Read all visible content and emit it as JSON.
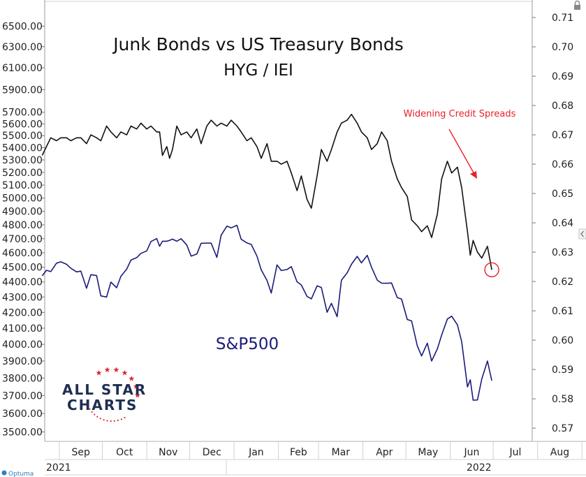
{
  "chart_data": {
    "type": "line",
    "title": "Junk Bonds vs US Treasury Bonds",
    "subtitle": "HYG / IEI",
    "annotation": "Widening Credit Spreads",
    "x_months": [
      "Sep",
      "Oct",
      "Nov",
      "Dec",
      "Jan",
      "Feb",
      "Mar",
      "Apr",
      "May",
      "Jun",
      "Jul",
      "Aug"
    ],
    "x_years": [
      "2021",
      "2022"
    ],
    "left_axis": {
      "ticks": [
        "6500.00",
        "6300.00",
        "6100.00",
        "5900.00",
        "5700.00",
        "5600.00",
        "5500.00",
        "5400.00",
        "5300.00",
        "5200.00",
        "5100.00",
        "5000.00",
        "4900.00",
        "4800.00",
        "4700.00",
        "4600.00",
        "4500.00",
        "4400.00",
        "4300.00",
        "4200.00",
        "4100.00",
        "4000.00",
        "3900.00",
        "3800.00",
        "3700.00",
        "3600.00",
        "3500.00"
      ],
      "scale": "log",
      "ylim": [
        3450,
        6750
      ]
    },
    "right_axis": {
      "ticks": [
        "0.71",
        "0.70",
        "0.69",
        "0.68",
        "0.67",
        "0.66",
        "0.65",
        "0.64",
        "0.63",
        "0.62",
        "0.61",
        "0.60",
        "0.59",
        "0.58",
        "0.57"
      ],
      "ylim": [
        0.5655,
        0.7155
      ]
    },
    "series": [
      {
        "name": "HYG / IEI",
        "axis": "right",
        "color": "#111111",
        "values": [
          [
            "2021-08-20",
            0.663
          ],
          [
            "2021-08-23",
            0.666
          ],
          [
            "2021-08-26",
            0.669
          ],
          [
            "2021-08-30",
            0.668
          ],
          [
            "2021-09-02",
            0.669
          ],
          [
            "2021-09-06",
            0.669
          ],
          [
            "2021-09-09",
            0.668
          ],
          [
            "2021-09-13",
            0.669
          ],
          [
            "2021-09-16",
            0.669
          ],
          [
            "2021-09-20",
            0.667
          ],
          [
            "2021-09-23",
            0.67
          ],
          [
            "2021-09-27",
            0.669
          ],
          [
            "2021-09-30",
            0.668
          ],
          [
            "2021-10-04",
            0.673
          ],
          [
            "2021-10-07",
            0.671
          ],
          [
            "2021-10-11",
            0.669
          ],
          [
            "2021-10-14",
            0.671
          ],
          [
            "2021-10-18",
            0.67
          ],
          [
            "2021-10-21",
            0.673
          ],
          [
            "2021-10-25",
            0.672
          ],
          [
            "2021-10-28",
            0.674
          ],
          [
            "2021-11-01",
            0.672
          ],
          [
            "2021-11-04",
            0.673
          ],
          [
            "2021-11-08",
            0.671
          ],
          [
            "2021-11-10",
            0.671
          ],
          [
            "2021-11-12",
            0.663
          ],
          [
            "2021-11-15",
            0.666
          ],
          [
            "2021-11-17",
            0.662
          ],
          [
            "2021-11-19",
            0.665
          ],
          [
            "2021-11-22",
            0.673
          ],
          [
            "2021-11-25",
            0.67
          ],
          [
            "2021-11-29",
            0.671
          ],
          [
            "2021-12-02",
            0.669
          ],
          [
            "2021-12-06",
            0.672
          ],
          [
            "2021-12-09",
            0.667
          ],
          [
            "2021-12-13",
            0.673
          ],
          [
            "2021-12-16",
            0.675
          ],
          [
            "2021-12-20",
            0.673
          ],
          [
            "2021-12-23",
            0.674
          ],
          [
            "2021-12-27",
            0.673
          ],
          [
            "2021-12-30",
            0.675
          ],
          [
            "2022-01-03",
            0.673
          ],
          [
            "2022-01-06",
            0.671
          ],
          [
            "2022-01-10",
            0.668
          ],
          [
            "2022-01-13",
            0.669
          ],
          [
            "2022-01-17",
            0.666
          ],
          [
            "2022-01-20",
            0.662
          ],
          [
            "2022-01-24",
            0.667
          ],
          [
            "2022-01-27",
            0.661
          ],
          [
            "2022-01-31",
            0.661
          ],
          [
            "2022-02-03",
            0.66
          ],
          [
            "2022-02-07",
            0.661
          ],
          [
            "2022-02-10",
            0.657
          ],
          [
            "2022-02-14",
            0.651
          ],
          [
            "2022-02-17",
            0.656
          ],
          [
            "2022-02-21",
            0.648
          ],
          [
            "2022-02-24",
            0.645
          ],
          [
            "2022-02-28",
            0.656
          ],
          [
            "2022-03-03",
            0.665
          ],
          [
            "2022-03-07",
            0.661
          ],
          [
            "2022-03-10",
            0.665
          ],
          [
            "2022-03-14",
            0.671
          ],
          [
            "2022-03-17",
            0.674
          ],
          [
            "2022-03-21",
            0.675
          ],
          [
            "2022-03-24",
            0.677
          ],
          [
            "2022-03-28",
            0.674
          ],
          [
            "2022-03-31",
            0.671
          ],
          [
            "2022-04-04",
            0.669
          ],
          [
            "2022-04-07",
            0.665
          ],
          [
            "2022-04-11",
            0.667
          ],
          [
            "2022-04-14",
            0.671
          ],
          [
            "2022-04-18",
            0.668
          ],
          [
            "2022-04-21",
            0.661
          ],
          [
            "2022-04-25",
            0.655
          ],
          [
            "2022-04-28",
            0.652
          ],
          [
            "2022-05-02",
            0.649
          ],
          [
            "2022-05-05",
            0.641
          ],
          [
            "2022-05-09",
            0.639
          ],
          [
            "2022-05-12",
            0.637
          ],
          [
            "2022-05-16",
            0.639
          ],
          [
            "2022-05-19",
            0.635
          ],
          [
            "2022-05-23",
            0.643
          ],
          [
            "2022-05-26",
            0.655
          ],
          [
            "2022-05-30",
            0.661
          ],
          [
            "2022-06-02",
            0.657
          ],
          [
            "2022-06-06",
            0.659
          ],
          [
            "2022-06-09",
            0.652
          ],
          [
            "2022-06-13",
            0.637
          ],
          [
            "2022-06-15",
            0.629
          ],
          [
            "2022-06-17",
            0.634
          ],
          [
            "2022-06-20",
            0.63
          ],
          [
            "2022-06-23",
            0.628
          ],
          [
            "2022-06-27",
            0.632
          ],
          [
            "2022-06-30",
            0.624
          ]
        ]
      },
      {
        "name": "S&P500",
        "axis": "left",
        "color": "#1b1b7a",
        "values": [
          [
            "2021-08-20",
            4441
          ],
          [
            "2021-08-23",
            4479
          ],
          [
            "2021-08-26",
            4470
          ],
          [
            "2021-08-30",
            4528
          ],
          [
            "2021-09-02",
            4537
          ],
          [
            "2021-09-06",
            4520
          ],
          [
            "2021-09-09",
            4493
          ],
          [
            "2021-09-13",
            4468
          ],
          [
            "2021-09-16",
            4473
          ],
          [
            "2021-09-20",
            4358
          ],
          [
            "2021-09-23",
            4449
          ],
          [
            "2021-09-27",
            4443
          ],
          [
            "2021-09-30",
            4307
          ],
          [
            "2021-10-04",
            4300
          ],
          [
            "2021-10-07",
            4399
          ],
          [
            "2021-10-11",
            4361
          ],
          [
            "2021-10-14",
            4438
          ],
          [
            "2021-10-18",
            4486
          ],
          [
            "2021-10-21",
            4549
          ],
          [
            "2021-10-25",
            4566
          ],
          [
            "2021-10-28",
            4596
          ],
          [
            "2021-11-01",
            4613
          ],
          [
            "2021-11-04",
            4680
          ],
          [
            "2021-11-08",
            4701
          ],
          [
            "2021-11-10",
            4646
          ],
          [
            "2021-11-12",
            4682
          ],
          [
            "2021-11-15",
            4682
          ],
          [
            "2021-11-17",
            4688
          ],
          [
            "2021-11-19",
            4697
          ],
          [
            "2021-11-22",
            4682
          ],
          [
            "2021-11-25",
            4700
          ],
          [
            "2021-11-29",
            4655
          ],
          [
            "2021-12-02",
            4577
          ],
          [
            "2021-12-06",
            4591
          ],
          [
            "2021-12-09",
            4667
          ],
          [
            "2021-12-13",
            4669
          ],
          [
            "2021-12-16",
            4668
          ],
          [
            "2021-12-20",
            4568
          ],
          [
            "2021-12-23",
            4725
          ],
          [
            "2021-12-27",
            4791
          ],
          [
            "2021-12-30",
            4778
          ],
          [
            "2022-01-03",
            4797
          ],
          [
            "2022-01-06",
            4696
          ],
          [
            "2022-01-10",
            4670
          ],
          [
            "2022-01-13",
            4659
          ],
          [
            "2022-01-17",
            4577
          ],
          [
            "2022-01-20",
            4482
          ],
          [
            "2022-01-24",
            4410
          ],
          [
            "2022-01-27",
            4326
          ],
          [
            "2022-01-31",
            4516
          ],
          [
            "2022-02-03",
            4477
          ],
          [
            "2022-02-07",
            4484
          ],
          [
            "2022-02-10",
            4504
          ],
          [
            "2022-02-14",
            4401
          ],
          [
            "2022-02-17",
            4380
          ],
          [
            "2022-02-21",
            4304
          ],
          [
            "2022-02-24",
            4288
          ],
          [
            "2022-02-28",
            4374
          ],
          [
            "2022-03-03",
            4363
          ],
          [
            "2022-03-07",
            4201
          ],
          [
            "2022-03-10",
            4259
          ],
          [
            "2022-03-14",
            4173
          ],
          [
            "2022-03-17",
            4411
          ],
          [
            "2022-03-21",
            4461
          ],
          [
            "2022-03-24",
            4520
          ],
          [
            "2022-03-28",
            4575
          ],
          [
            "2022-03-31",
            4530
          ],
          [
            "2022-04-04",
            4582
          ],
          [
            "2022-04-07",
            4500
          ],
          [
            "2022-04-11",
            4412
          ],
          [
            "2022-04-14",
            4392
          ],
          [
            "2022-04-18",
            4391
          ],
          [
            "2022-04-21",
            4393
          ],
          [
            "2022-04-25",
            4296
          ],
          [
            "2022-04-28",
            4287
          ],
          [
            "2022-05-02",
            4155
          ],
          [
            "2022-05-05",
            4146
          ],
          [
            "2022-05-09",
            3991
          ],
          [
            "2022-05-12",
            3930
          ],
          [
            "2022-05-16",
            4008
          ],
          [
            "2022-05-19",
            3900
          ],
          [
            "2022-05-23",
            3973
          ],
          [
            "2022-05-26",
            4057
          ],
          [
            "2022-05-30",
            4158
          ],
          [
            "2022-06-02",
            4176
          ],
          [
            "2022-06-06",
            4121
          ],
          [
            "2022-06-09",
            4017
          ],
          [
            "2022-06-13",
            3749
          ],
          [
            "2022-06-15",
            3790
          ],
          [
            "2022-06-17",
            3674
          ],
          [
            "2022-06-20",
            3675
          ],
          [
            "2022-06-23",
            3795
          ],
          [
            "2022-06-27",
            3900
          ],
          [
            "2022-06-30",
            3785
          ]
        ]
      }
    ],
    "grid": false,
    "legend": "none"
  },
  "labels": {
    "sp500": "S&P500",
    "logo_line1": "ALL STAR",
    "logo_line2": "CHARTS",
    "brand": "Optuma"
  },
  "colors": {
    "ratio_line": "#111111",
    "sp500_line": "#1b1b7a",
    "annotation": "#e8202a",
    "logo_text": "#1f2f52",
    "logo_stars": "#d8283a"
  }
}
